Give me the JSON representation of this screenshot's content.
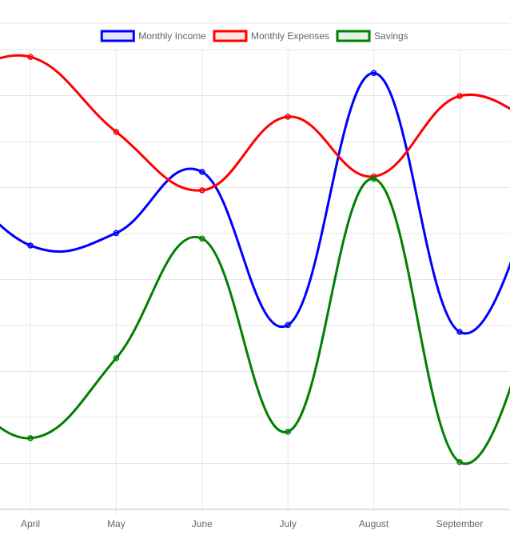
{
  "chart_data": {
    "type": "line",
    "title": "",
    "xlabel": "",
    "ylabel": "",
    "categories": [
      "April",
      "May",
      "June",
      "July",
      "August",
      "September"
    ],
    "series": [
      {
        "name": "Monthly Income",
        "color": "#0000ff",
        "fill": "rgba(0,0,255,0.1)",
        "values": [
          5.74,
          6.01,
          7.34,
          4.01,
          9.49,
          3.86
        ],
        "edge_left": 7.5,
        "edge_right": 7.5
      },
      {
        "name": "Monthly Expenses",
        "color": "#ff0000",
        "fill": "rgba(255,0,0,0.1)",
        "values": [
          9.84,
          8.21,
          6.94,
          8.54,
          7.24,
          8.99
        ],
        "edge_left": 9.2,
        "edge_right": 8.2
      },
      {
        "name": "Savings",
        "color": "#008000",
        "fill": "rgba(0,128,0,0.1)",
        "values": [
          1.55,
          3.29,
          5.89,
          1.69,
          7.19,
          1.03
        ],
        "edge_left": 3.0,
        "edge_right": 5.0
      }
    ],
    "ylim": [
      0,
      10
    ],
    "y_gridlines": [
      0,
      1,
      2,
      3,
      4,
      5,
      6,
      7,
      8,
      9,
      10
    ],
    "grid": true,
    "legend_position": "top-center",
    "tension": 0.4
  }
}
